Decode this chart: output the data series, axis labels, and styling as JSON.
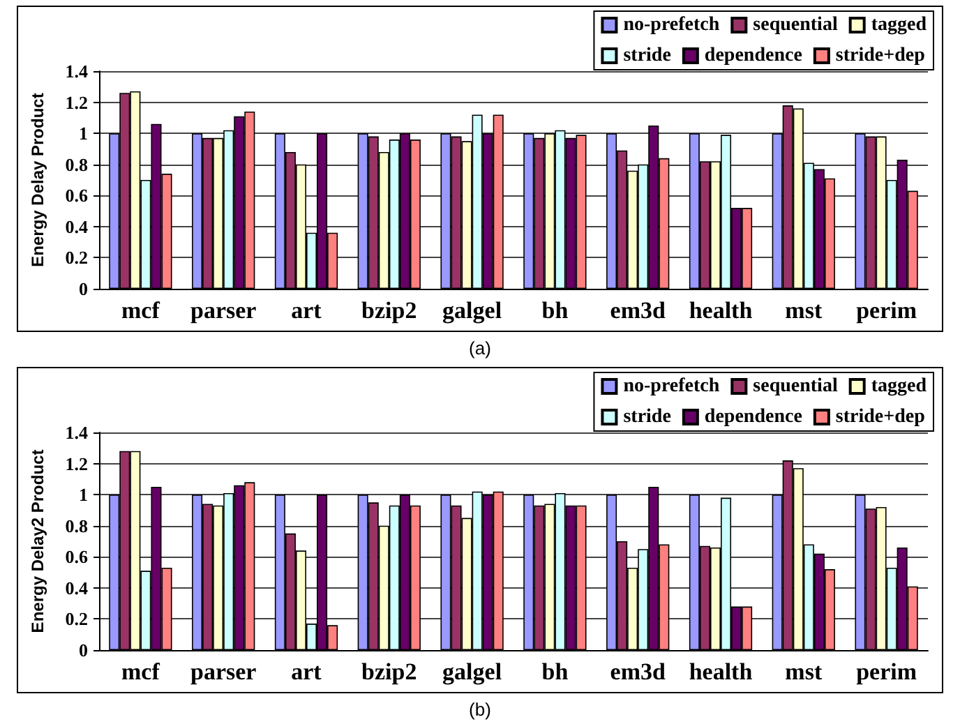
{
  "chart_data": [
    {
      "type": "bar",
      "ylabel": "Energy Delay Product",
      "categories": [
        "mcf",
        "parser",
        "art",
        "bzip2",
        "galgel",
        "bh",
        "em3d",
        "health",
        "mst",
        "perim"
      ],
      "series": [
        {
          "name": "no-prefetch",
          "color": "#9999ff",
          "values": [
            1,
            1,
            1,
            1,
            1,
            1,
            1,
            1,
            1,
            1
          ]
        },
        {
          "name": "sequential",
          "color": "#993366",
          "values": [
            1.26,
            0.97,
            0.88,
            0.98,
            0.98,
            0.97,
            0.89,
            0.82,
            1.18,
            0.98
          ]
        },
        {
          "name": "tagged",
          "color": "#ffffcc",
          "values": [
            1.27,
            0.97,
            0.8,
            0.88,
            0.95,
            1.0,
            0.76,
            0.82,
            1.16,
            0.98
          ]
        },
        {
          "name": "stride",
          "color": "#ccffff",
          "values": [
            0.7,
            1.02,
            0.36,
            0.96,
            1.12,
            1.02,
            0.8,
            0.99,
            0.81,
            0.7
          ]
        },
        {
          "name": "dependence",
          "color": "#660066",
          "values": [
            1.06,
            1.11,
            1.0,
            1.0,
            1.0,
            0.97,
            1.05,
            0.52,
            0.77,
            0.83
          ]
        },
        {
          "name": "stride+dep",
          "color": "#ff8080",
          "values": [
            0.74,
            1.14,
            0.36,
            0.96,
            1.12,
            0.99,
            0.84,
            0.52,
            0.71,
            0.63
          ]
        }
      ],
      "ylim": [
        0,
        1.4
      ],
      "yticks": [
        0,
        0.2,
        0.4,
        0.6,
        0.8,
        1,
        1.2,
        1.4
      ],
      "grid": "y",
      "legend": "top right",
      "annotations": [
        "(a)"
      ]
    },
    {
      "type": "bar",
      "ylabel": "Energy Delay2 Product",
      "categories": [
        "mcf",
        "parser",
        "art",
        "bzip2",
        "galgel",
        "bh",
        "em3d",
        "health",
        "mst",
        "perim"
      ],
      "series": [
        {
          "name": "no-prefetch",
          "color": "#9999ff",
          "values": [
            1,
            1,
            1,
            1,
            1,
            1,
            1,
            1,
            1,
            1
          ]
        },
        {
          "name": "sequential",
          "color": "#993366",
          "values": [
            1.28,
            0.94,
            0.75,
            0.95,
            0.93,
            0.93,
            0.7,
            0.67,
            1.22,
            0.91
          ]
        },
        {
          "name": "tagged",
          "color": "#ffffcc",
          "values": [
            1.28,
            0.93,
            0.64,
            0.8,
            0.85,
            0.94,
            0.53,
            0.66,
            1.17,
            0.92
          ]
        },
        {
          "name": "stride",
          "color": "#ccffff",
          "values": [
            0.51,
            1.01,
            0.17,
            0.93,
            1.02,
            1.01,
            0.65,
            0.98,
            0.68,
            0.53
          ]
        },
        {
          "name": "dependence",
          "color": "#660066",
          "values": [
            1.05,
            1.06,
            1.0,
            1.0,
            1.0,
            0.93,
            1.05,
            0.28,
            0.62,
            0.66
          ]
        },
        {
          "name": "stride+dep",
          "color": "#ff8080",
          "values": [
            0.53,
            1.08,
            0.16,
            0.93,
            1.02,
            0.93,
            0.68,
            0.28,
            0.52,
            0.41
          ]
        }
      ],
      "ylim": [
        0,
        1.4
      ],
      "yticks": [
        0,
        0.2,
        0.4,
        0.6,
        0.8,
        1,
        1.2,
        1.4
      ],
      "grid": "y",
      "legend": "top right",
      "annotations": [
        "(b)"
      ]
    }
  ]
}
